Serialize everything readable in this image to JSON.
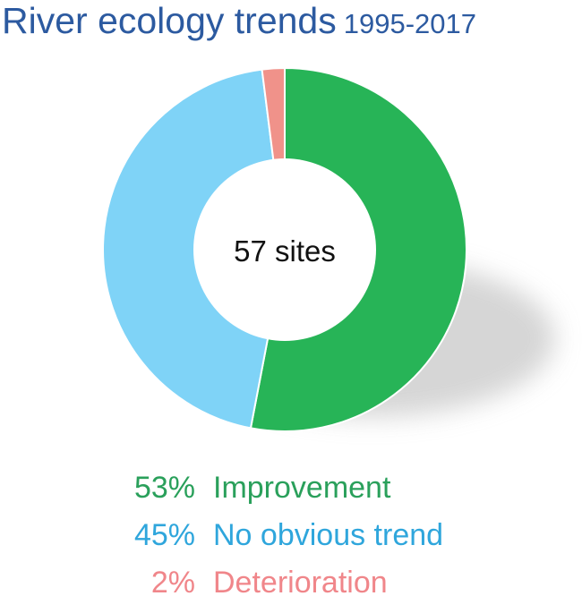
{
  "title": "River ecology trends",
  "subtitle": "1995-2017",
  "center_label": "57 sites",
  "colors": {
    "title": "#2c5aa0",
    "improvement": "#27b457",
    "no_trend": "#7fd3f7",
    "deterioration": "#f0928a",
    "shadow": "#cfcfcf"
  },
  "legend": [
    {
      "percent": "53%",
      "label": "Improvement",
      "color": "#2aa05b"
    },
    {
      "percent": "45%",
      "label": "No obvious trend",
      "color": "#2fa6dc"
    },
    {
      "percent": "2%",
      "label": "Deterioration",
      "color": "#f0868a"
    }
  ],
  "chart_data": {
    "type": "pie",
    "title": "River ecology trends",
    "subtitle": "1995-2017",
    "labels": [
      "Improvement",
      "No obvious trend",
      "Deterioration"
    ],
    "values": [
      53,
      45,
      2
    ],
    "unit": "%",
    "colors": [
      "#27b457",
      "#7fd3f7",
      "#f0928a"
    ],
    "center_label": "57 sites",
    "total_sites": 57,
    "donut": true
  }
}
